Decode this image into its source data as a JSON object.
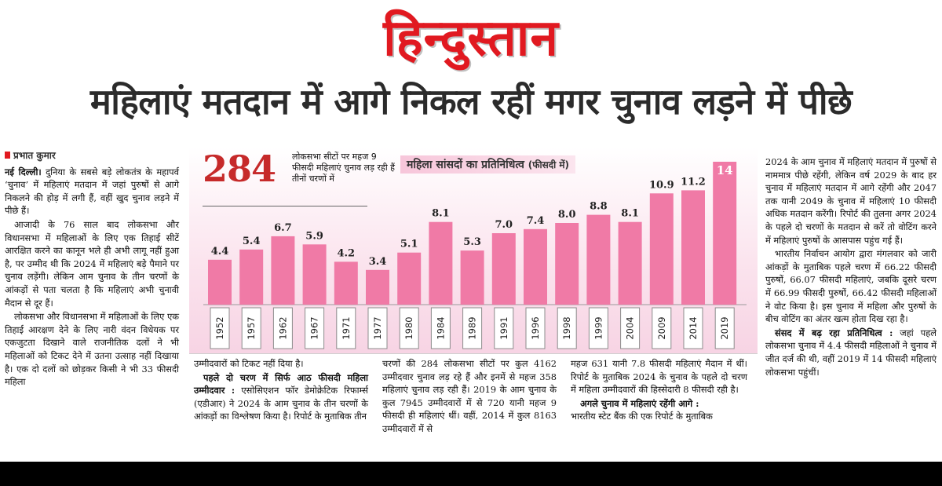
{
  "masthead": {
    "logo_text": "हिन्दुस्तान"
  },
  "headline": "महिलाएं मतदान में आगे निकल रहीं मगर चुनाव लड़ने में पीछे",
  "byline": "प्रभात कुमार",
  "left_column": {
    "p1_dateline": "नई दिल्ली।",
    "p1": " दुनिया के सबसे बड़े लोकतंत्र के महापर्व ‘चुनाव’ में महिलाएं मतदान में जहां पुरुषों से आगे निकलने की होड़ में लगी हैं, वहीं खुद चुनाव लड़ने में पीछे हैं।",
    "p2": "आजादी के 76 साल बाद लोकसभा और विधानसभा में महिलाओं के लिए एक तिहाई सीटें आरक्षित करने का कानून भले ही अभी लागू नहीं हुआ है, पर उम्मीद थी कि 2024 में महिलाएं बड़े पैमाने पर चुनाव लड़ेंगी। लेकिन आम चुनाव के तीन चरणों के आंकड़ों से पता चलता है कि महिलाएं अभी चुनावी मैदान से दूर हैं।",
    "p3": "लोकसभा और विधानसभा में महिलाओं के लिए एक तिहाई आरक्षण देने के लिए नारी वंदन विधेयक पर एकजुटता दिखाने वाले राजनीतिक दलों ने भी महिलाओं को टिकट देने में उतना उत्साह नहीं दिखाया है। एक दो दलों को छोड़कर किसी ने भी 33 फीसदी महिला"
  },
  "chart": {
    "big_number": "284",
    "intro_text": "लोकसभा सीटों पर महज 9 फीसदी महिलाएं चुनाव लड़ रही हैं तीनों चरणों में",
    "title": "महिला सांसदों का प्रतिनिधित्व",
    "title_unit": "(फीसदी में)"
  },
  "chart_data": {
    "type": "bar",
    "title": "महिला सांसदों का प्रतिनिधित्व (फीसदी में)",
    "categories": [
      "1952",
      "1957",
      "1962",
      "1967",
      "1971",
      "1977",
      "1980",
      "1984",
      "1989",
      "1991",
      "1996",
      "1998",
      "1999",
      "2004",
      "2009",
      "2014",
      "2019"
    ],
    "values": [
      4.4,
      5.4,
      6.7,
      5.9,
      4.2,
      3.4,
      5.1,
      8.1,
      5.3,
      7.0,
      7.4,
      8.0,
      8.8,
      8.1,
      10.9,
      11.2,
      14
    ],
    "value_labels": [
      "4.4",
      "5.4",
      "6.7",
      "5.9",
      "4.2",
      "3.4",
      "5.1",
      "8.1",
      "5.3",
      "7.0",
      "7.4",
      "8.0",
      "8.8",
      "8.1",
      "10.9",
      "11.2",
      "14"
    ],
    "ylim": [
      0,
      14
    ],
    "grid": false,
    "colors": {
      "bar": "#f07aa6",
      "highlight_label_bg": "#f07aa6",
      "label": "#222222"
    }
  },
  "mid_col1": {
    "p1": "उम्मीदवारों को टिकट नहीं दिया है।",
    "sub1": "पहले दो चरण में सिर्फ आठ फीसदी महिला उम्मीदवार :",
    "p2": " एसोसिएशन फॉर डेमोक्रेटिक रिफार्म्स (एडीआर) ने 2024 के आम चुनाव के तीन चरणों के आंकड़ों का विश्लेषण किया है। रिपोर्ट के मुताबिक तीन"
  },
  "mid_col2": {
    "p1": "चरणों की 284 लोकसभा सीटों पर कुल 4162 उम्मीदवार चुनाव लड़ रहे हैं और इनमें से महज 358 महिलाएं चुनाव लड़ रही हैं। 2019 के आम चुनाव के कुल 7945 उम्मीदवारों में से 720 यानी महज 9 फीसदी ही महिलाएं थीं। वहीं, 2014 में कुल 8163 उम्मीदवारों में से"
  },
  "mid_col3": {
    "p1": "महज 631 यानी 7.8 फीसदी महिलाएं मैदान में थीं। रिपोर्ट के मुताबिक 2024 के चुनाव के पहले दो चरण में महिला उम्मीदवारों की हिस्सेदारी 8 फीसदी रही है।",
    "sub1": "अगले चुनाव में महिलाएं रहेंगी आगे :",
    "p2": "भारतीय स्टेट बैंक की एक रिपोर्ट के मुताबिक"
  },
  "right_column": {
    "p1": "2024 के आम चुनाव में महिलाएं मतदान में पुरुषों से नाममात्र पीछे रहेंगी, लेकिन वर्ष 2029 के बाद हर चुनाव में महिलाएं मतदान में आगे रहेंगी और 2047 तक यानी 2049 के चुनाव में महिलाएं 10 फीसदी अधिक मतदान करेंगी। रिपोर्ट की तुलना अगर 2024 के पहले दो चरणों के मतदान से करें तो वोटिंग करने में महिलाएं पुरुषों के आसपास पहुंच गई हैं।",
    "p2": "भारतीय निर्वाचन आयोग द्वारा मंगलवार को जारी आंकड़ों के मुताबिक पहले चरण में 66.22 फीसदी पुरुषों, 66.07 फीसदी महिलाएं, जबकि दूसरे चरण में 66.99 फीसदी पुरुषों, 66.42 फीसदी महिलाओं ने वोट किया है। इस चुनाव में महिला और पुरुषों के बीच वोटिंग का अंतर खत्म होता दिख रहा है।",
    "sub1": "संसद में बढ़ रहा प्रतिनिधित्व :",
    "p3": " जहां पहले लोकसभा चुनाव में 4.4 फीसदी महिलाओं ने चुनाव में जीत दर्ज की थी, वहीं 2019 में 14 फीसदी महिलाएं लोकसभा पहुंचीं।"
  }
}
